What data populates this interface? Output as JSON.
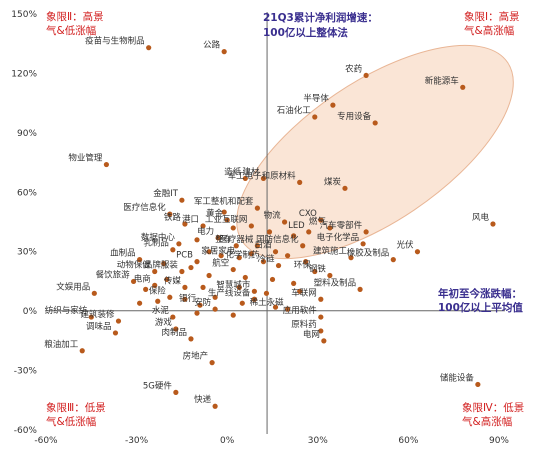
{
  "chart_data": {
    "type": "scatter",
    "title": "",
    "xlabel": "",
    "ylabel": "",
    "xlim": [
      -60,
      90
    ],
    "ylim": [
      -60,
      150
    ],
    "x_ticks": [
      "-60%",
      "-30%",
      "0%",
      "30%",
      "60%",
      "90%"
    ],
    "y_ticks": [
      "150%",
      "120%",
      "90%",
      "60%",
      "30%",
      "0%",
      "-30%",
      "-60%"
    ],
    "x_tick_values": [
      -60,
      -30,
      0,
      30,
      60,
      90
    ],
    "y_tick_values": [
      150,
      120,
      90,
      60,
      30,
      0,
      -30,
      -60
    ],
    "x_axis_at": 0.2,
    "y_axis_at": 13.2,
    "quadrants": {
      "q1": [
        "象限Ⅰ：高景",
        "气&高涨幅"
      ],
      "q2": [
        "象限Ⅱ：高景",
        "气&低涨幅"
      ],
      "q3": [
        "象限Ⅲ：低景",
        "气&低涨幅"
      ],
      "q4": [
        "象限Ⅳ：低景",
        "气&高涨幅"
      ]
    },
    "annotations": {
      "profit": [
        "21Q3累计净利润增速：",
        "100亿以上整体法"
      ],
      "return": [
        "年初至今涨跌幅：",
        "100亿以上平均值"
      ]
    },
    "colors": {
      "point": "#b85a1c",
      "quadrant_text": "#d21f1f",
      "annotation_text": "#3a2f8f",
      "ellipse": "#f7d3bb"
    },
    "points": [
      {
        "label": "疫苗与生物制品",
        "x": -26,
        "y": 133
      },
      {
        "label": "公路",
        "x": -1,
        "y": 131
      },
      {
        "label": "农药",
        "x": 46,
        "y": 119
      },
      {
        "label": "新能源车",
        "x": 78,
        "y": 113
      },
      {
        "label": "半导体",
        "x": 35,
        "y": 104
      },
      {
        "label": "石油化工",
        "x": 29,
        "y": 98
      },
      {
        "label": "专用设备",
        "x": 49,
        "y": 95
      },
      {
        "label": "物业管理",
        "x": -40,
        "y": 74
      },
      {
        "label": "造纸",
        "x": 6,
        "y": 67
      },
      {
        "label": "建材",
        "x": 12,
        "y": 67
      },
      {
        "label": "军工电子和原材料",
        "x": 24,
        "y": 65
      },
      {
        "label": "煤炭",
        "x": 39,
        "y": 62
      },
      {
        "label": "金融IT",
        "x": -15,
        "y": 56
      },
      {
        "label": "医疗信息化",
        "x": -19,
        "y": 49
      },
      {
        "label": "铁路",
        "x": -14,
        "y": 44
      },
      {
        "label": "军工整机和配套",
        "x": 10,
        "y": 52
      },
      {
        "label": "CXO",
        "x": 31,
        "y": 46
      },
      {
        "label": "燃气",
        "x": 34,
        "y": 42
      },
      {
        "label": "黄金",
        "x": 0,
        "y": 46
      },
      {
        "label": "港口",
        "x": -8,
        "y": 43
      },
      {
        "label": "工业互联网",
        "x": 8,
        "y": 43
      },
      {
        "label": "物流",
        "x": 19,
        "y": 45
      },
      {
        "label": "LED",
        "x": 27,
        "y": 40
      },
      {
        "label": "汽车零部件",
        "x": 46,
        "y": 40
      },
      {
        "label": "风电",
        "x": 88,
        "y": 44
      },
      {
        "label": "电力",
        "x": -3,
        "y": 37
      },
      {
        "label": "整车",
        "x": 3,
        "y": 33
      },
      {
        "label": "医疗器械",
        "x": 10,
        "y": 33
      },
      {
        "label": "国防信息化",
        "x": 25,
        "y": 33
      },
      {
        "label": "电子化学品",
        "x": 45,
        "y": 34
      },
      {
        "label": "光伏",
        "x": 63,
        "y": 30
      },
      {
        "label": "数据中心",
        "x": -16,
        "y": 34
      },
      {
        "label": "乳制品",
        "x": -18,
        "y": 31
      },
      {
        "label": "PCB",
        "x": -10,
        "y": 25
      },
      {
        "label": "家居家电",
        "x": 4,
        "y": 27
      },
      {
        "label": "白酒",
        "x": 16,
        "y": 30
      },
      {
        "label": "冷链",
        "x": 17,
        "y": 23
      },
      {
        "label": "化学制药",
        "x": 12,
        "y": 25
      },
      {
        "label": "建筑施工",
        "x": 41,
        "y": 27
      },
      {
        "label": "橡胶及制品",
        "x": 55,
        "y": 26
      },
      {
        "label": "血制品",
        "x": -29,
        "y": 26
      },
      {
        "label": "动物保健",
        "x": -24,
        "y": 20
      },
      {
        "label": "品牌服装",
        "x": -15,
        "y": 20
      },
      {
        "label": "航空",
        "x": 2,
        "y": 21
      },
      {
        "label": "环保",
        "x": 29,
        "y": 20
      },
      {
        "label": "钢铁",
        "x": 34,
        "y": 18
      },
      {
        "label": "餐饮旅游",
        "x": -31,
        "y": 15
      },
      {
        "label": "电商",
        "x": -24,
        "y": 13
      },
      {
        "label": "传媒",
        "x": -14,
        "y": 12
      },
      {
        "label": "智慧城市",
        "x": 9,
        "y": 10
      },
      {
        "label": "文娱用品",
        "x": -44,
        "y": 9
      },
      {
        "label": "塑料及制品",
        "x": 44,
        "y": 11
      },
      {
        "label": "车联网",
        "x": 31,
        "y": 6
      },
      {
        "label": "生产线设备",
        "x": 9,
        "y": 6
      },
      {
        "label": "保险",
        "x": -19,
        "y": 7
      },
      {
        "label": "银行",
        "x": -9,
        "y": 3
      },
      {
        "label": "安防",
        "x": -4,
        "y": 1
      },
      {
        "label": "稀土永磁",
        "x": 20,
        "y": 1
      },
      {
        "label": "应用软件",
        "x": 31,
        "y": -3
      },
      {
        "label": "纺织与家纺",
        "x": -45,
        "y": -3
      },
      {
        "label": "建筑装修",
        "x": -36,
        "y": -5
      },
      {
        "label": "水泥",
        "x": -18,
        "y": -3
      },
      {
        "label": "调味品",
        "x": -37,
        "y": -11
      },
      {
        "label": "游戏",
        "x": -17,
        "y": -9
      },
      {
        "label": "肉制品",
        "x": -12,
        "y": -14
      },
      {
        "label": "原料药",
        "x": 31,
        "y": -10
      },
      {
        "label": "电网",
        "x": 32,
        "y": -15
      },
      {
        "label": "粮油加工",
        "x": -48,
        "y": -20
      },
      {
        "label": "房地产",
        "x": -5,
        "y": -26
      },
      {
        "label": "储能设备",
        "x": 83,
        "y": -37
      },
      {
        "label": "5G硬件",
        "x": -17,
        "y": -41
      },
      {
        "label": "快递",
        "x": -4,
        "y": -48
      }
    ],
    "unlabeled_points": [
      {
        "x": -1,
        "y": 50
      },
      {
        "x": 2,
        "y": 42
      },
      {
        "x": 14,
        "y": 40
      },
      {
        "x": 22,
        "y": 38
      },
      {
        "x": -10,
        "y": 36
      },
      {
        "x": -6,
        "y": 30
      },
      {
        "x": -2,
        "y": 28
      },
      {
        "x": 8,
        "y": 29
      },
      {
        "x": 20,
        "y": 28
      },
      {
        "x": 26,
        "y": 25
      },
      {
        "x": -21,
        "y": 24
      },
      {
        "x": -12,
        "y": 22
      },
      {
        "x": -6,
        "y": 18
      },
      {
        "x": 6,
        "y": 17
      },
      {
        "x": 15,
        "y": 16
      },
      {
        "x": 22,
        "y": 14
      },
      {
        "x": -27,
        "y": 11
      },
      {
        "x": -20,
        "y": 16
      },
      {
        "x": -8,
        "y": 12
      },
      {
        "x": 4,
        "y": 12
      },
      {
        "x": 13,
        "y": 9
      },
      {
        "x": 24,
        "y": 10
      },
      {
        "x": -14,
        "y": 6
      },
      {
        "x": -4,
        "y": 7
      },
      {
        "x": 5,
        "y": 4
      },
      {
        "x": 16,
        "y": 2
      },
      {
        "x": -29,
        "y": 4
      },
      {
        "x": -10,
        "y": -1
      },
      {
        "x": 2,
        "y": -2
      },
      {
        "x": -23,
        "y": 5
      }
    ]
  }
}
